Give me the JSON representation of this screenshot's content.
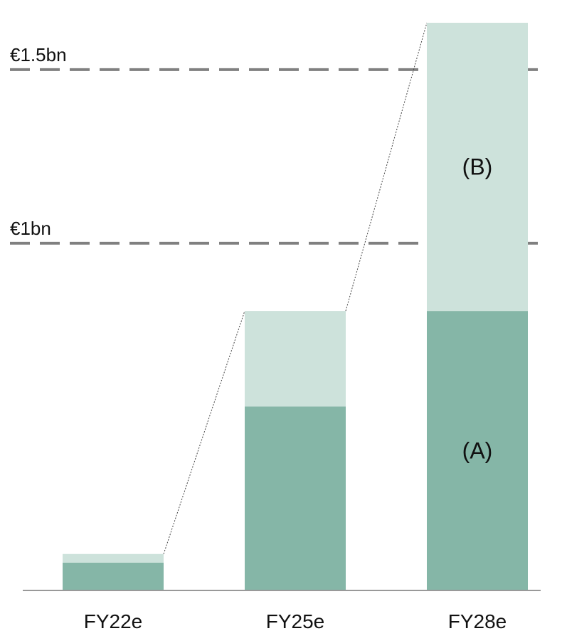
{
  "chart_data": {
    "type": "bar",
    "stacked": true,
    "categories": [
      "FY22e",
      "FY25e",
      "FY28e"
    ],
    "series": [
      {
        "key": "A",
        "values": [
          0.08,
          0.53,
          0.805
        ],
        "color": "#85b6a7"
      },
      {
        "key": "B",
        "values": [
          0.025,
          0.275,
          0.83
        ],
        "color": "#cde2db"
      }
    ],
    "segment_labels": [
      {
        "text": "(A)",
        "series_index": 0,
        "category_index": 2
      },
      {
        "text": "(B)",
        "series_index": 1,
        "category_index": 2
      }
    ],
    "reference_lines": [
      {
        "value": 1.0,
        "label": "€1bn",
        "style": "dashed",
        "color": "#808080"
      },
      {
        "value": 1.5,
        "label": "€1.5bn",
        "style": "dashed",
        "color": "#808080"
      }
    ],
    "connector_lines": "dotted",
    "ylim": [
      0,
      1.635
    ],
    "grid": false,
    "legend": "none",
    "axis_color": "#999999"
  }
}
